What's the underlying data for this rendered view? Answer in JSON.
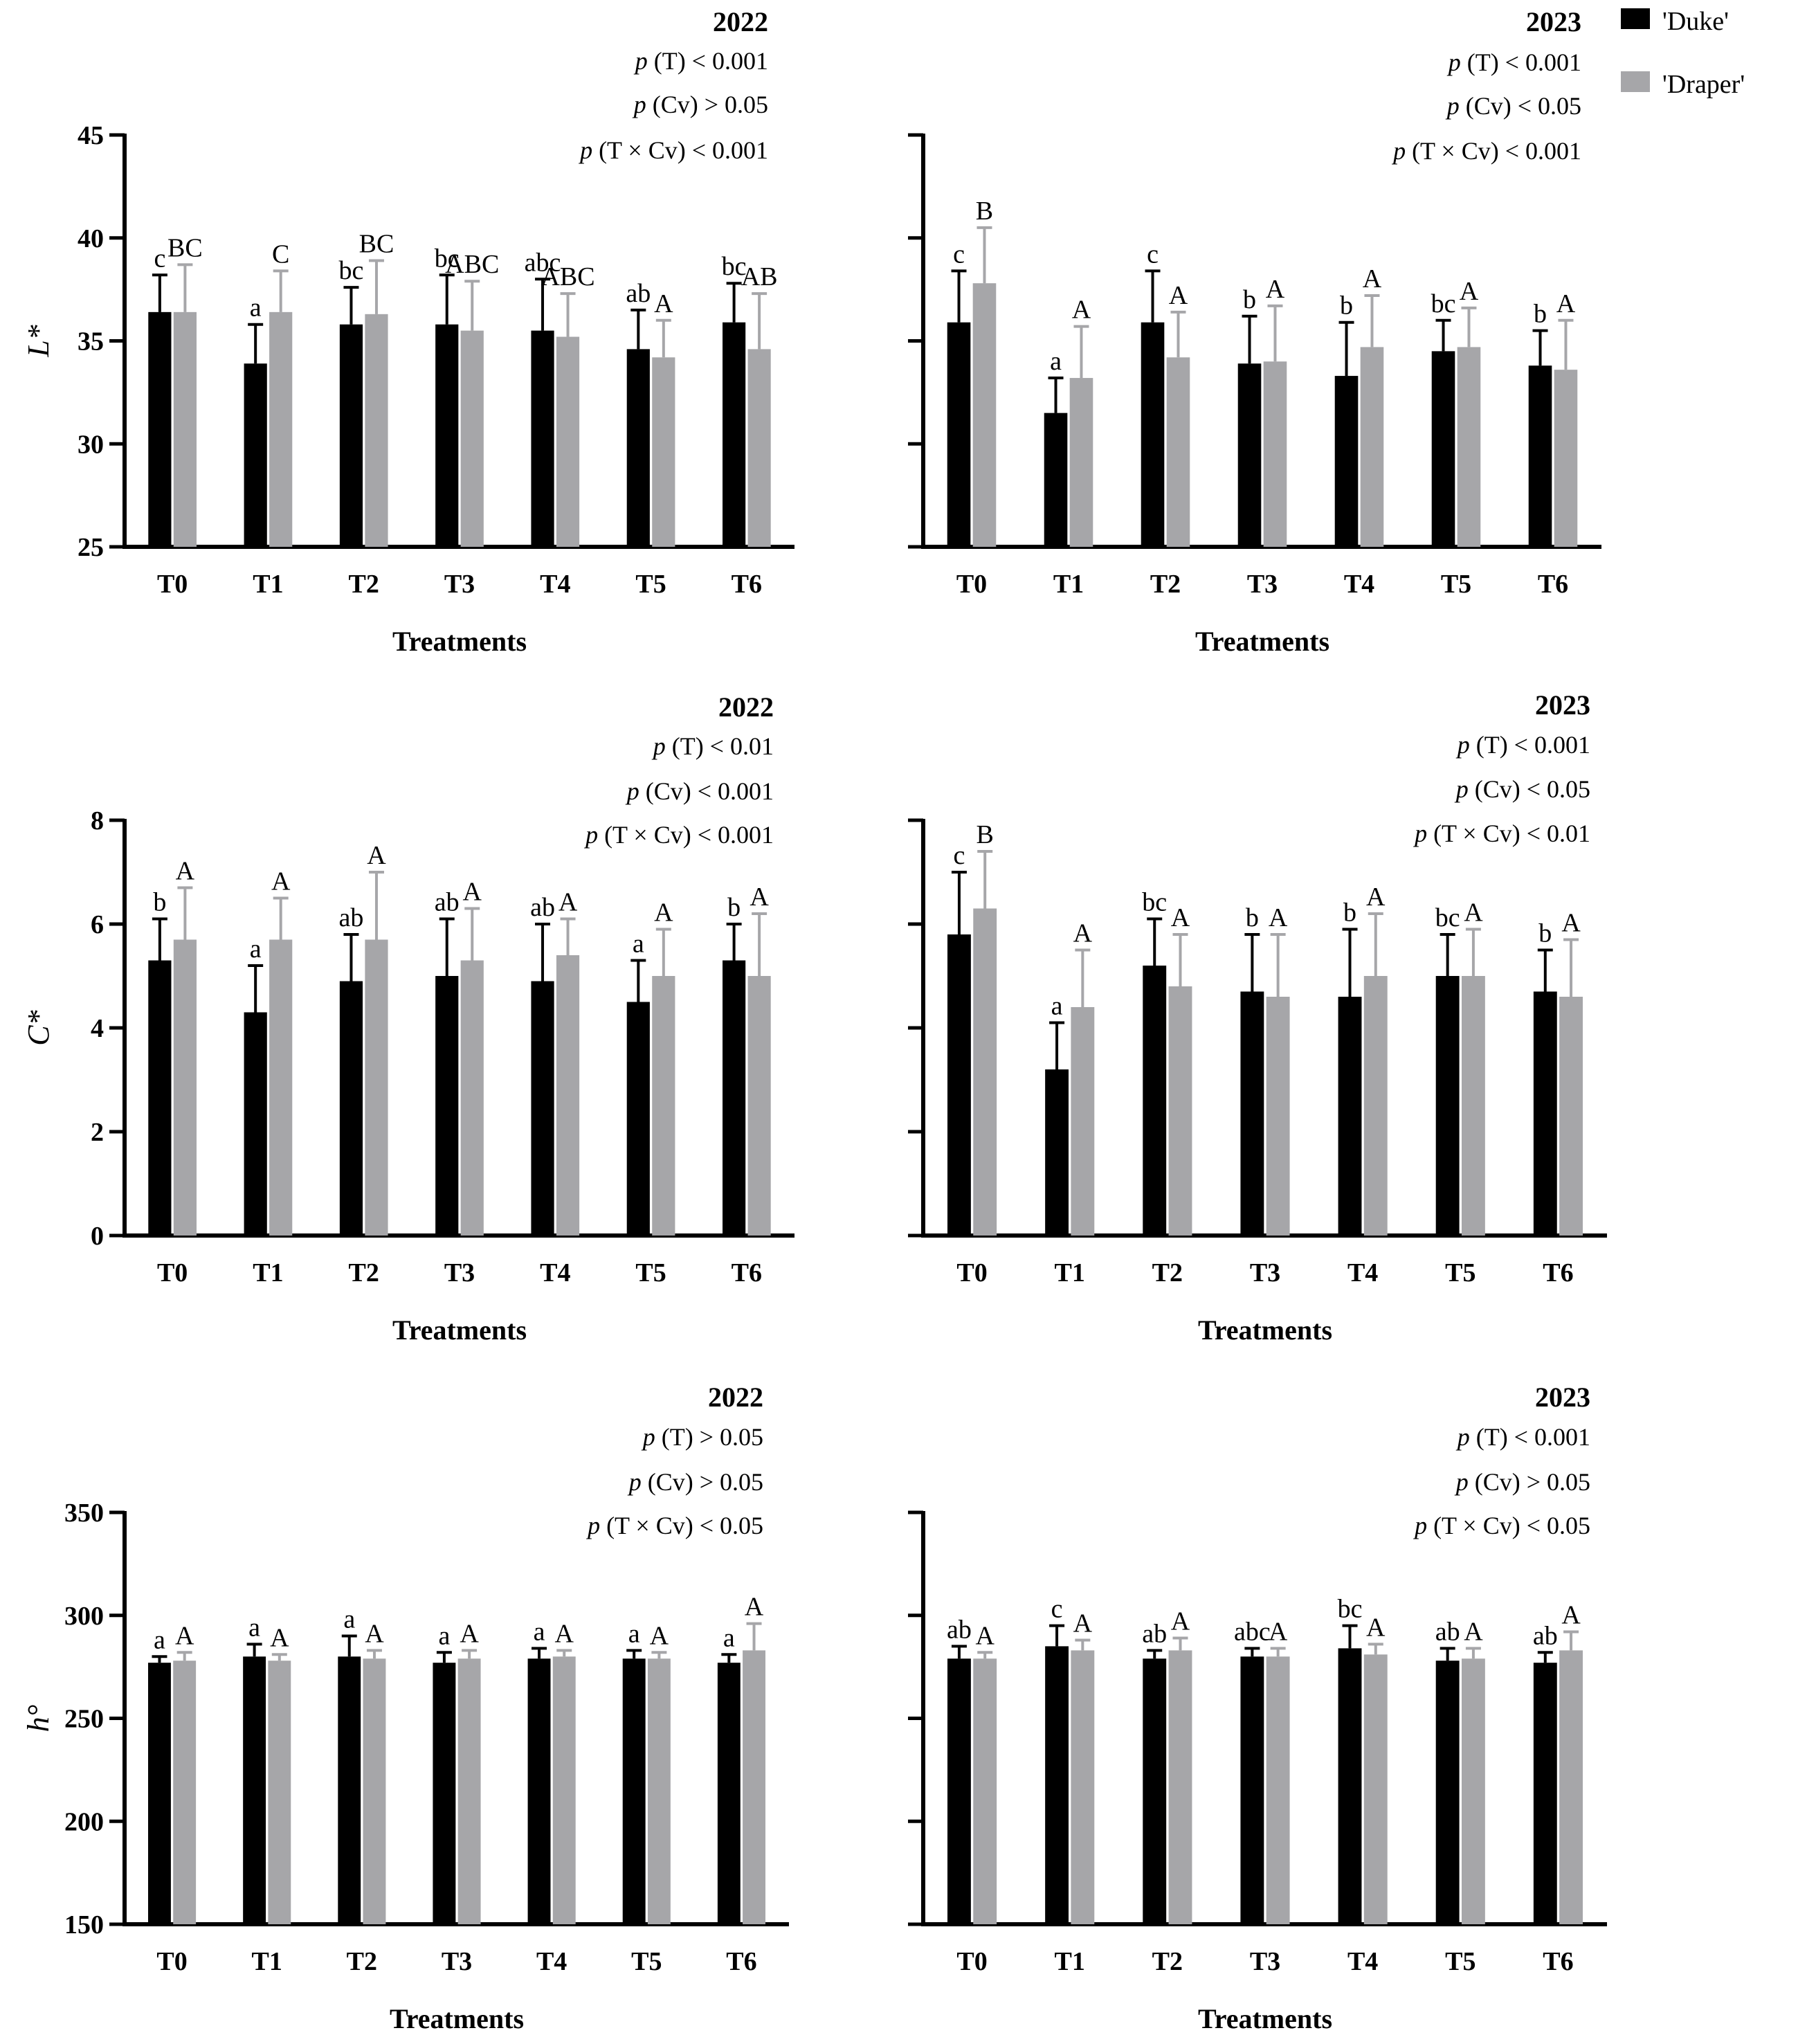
{
  "figure": {
    "legend": [
      {
        "label": "'Duke'",
        "color": "#000000"
      },
      {
        "label": "'Draper'",
        "color": "#a6a6a9"
      }
    ]
  },
  "chart_data": [
    {
      "id": "L-2022",
      "type": "bar",
      "title": "2022",
      "stats": [
        {
          "p": "p",
          "rest": " (T) < 0.001"
        },
        {
          "p": "p",
          "rest": " (Cv) > 0.05"
        },
        {
          "p": "p",
          "rest": " (T × Cv) < 0.001"
        }
      ],
      "categories": [
        "T0",
        "T1",
        "T2",
        "T3",
        "T4",
        "T5",
        "T6"
      ],
      "xlabel": "Treatments",
      "ylabel": "L*",
      "ylim": [
        25,
        45
      ],
      "yticks": [
        25,
        30,
        35,
        40,
        45
      ],
      "show_tick_labels": true,
      "series": [
        {
          "name": "'Duke'",
          "color": "#000000",
          "values": [
            36.4,
            33.9,
            35.8,
            35.8,
            35.5,
            34.6,
            35.9
          ],
          "errors": [
            1.8,
            1.9,
            1.8,
            2.4,
            2.5,
            1.9,
            1.9
          ],
          "letters": [
            "c",
            "a",
            "bc",
            "bc",
            "abc",
            "ab",
            "bc"
          ]
        },
        {
          "name": "'Draper'",
          "color": "#a6a6a9",
          "values": [
            36.4,
            36.4,
            36.3,
            35.5,
            35.2,
            34.2,
            34.6
          ],
          "errors": [
            2.3,
            2.0,
            2.6,
            2.4,
            2.1,
            1.8,
            2.7
          ],
          "letters": [
            "BC",
            "C",
            "BC",
            "ABC",
            "ABC",
            "A",
            "AB"
          ]
        }
      ]
    },
    {
      "id": "L-2023",
      "type": "bar",
      "title": "2023",
      "stats": [
        {
          "p": "p",
          "rest": " (T) < 0.001"
        },
        {
          "p": "p",
          "rest": " (Cv) < 0.05"
        },
        {
          "p": "p",
          "rest": " (T × Cv) < 0.001"
        }
      ],
      "categories": [
        "T0",
        "T1",
        "T2",
        "T3",
        "T4",
        "T5",
        "T6"
      ],
      "xlabel": "Treatments",
      "ylabel": "",
      "ylim": [
        25,
        45
      ],
      "yticks": [
        25,
        30,
        35,
        40,
        45
      ],
      "show_tick_labels": false,
      "series": [
        {
          "name": "'Duke'",
          "color": "#000000",
          "values": [
            35.9,
            31.5,
            35.9,
            33.9,
            33.3,
            34.5,
            33.8
          ],
          "errors": [
            2.5,
            1.7,
            2.5,
            2.3,
            2.6,
            1.5,
            1.7
          ],
          "letters": [
            "c",
            "a",
            "c",
            "b",
            "b",
            "bc",
            "b"
          ]
        },
        {
          "name": "'Draper'",
          "color": "#a6a6a9",
          "values": [
            37.8,
            33.2,
            34.2,
            34.0,
            34.7,
            34.7,
            33.6
          ],
          "errors": [
            2.7,
            2.5,
            2.2,
            2.7,
            2.5,
            1.9,
            2.4
          ],
          "letters": [
            "B",
            "A",
            "A",
            "A",
            "A",
            "A",
            "A"
          ]
        }
      ]
    },
    {
      "id": "C-2022",
      "type": "bar",
      "title": "2022",
      "stats": [
        {
          "p": "p",
          "rest": " (T) < 0.01"
        },
        {
          "p": "p",
          "rest": " (Cv) < 0.001"
        },
        {
          "p": "p",
          "rest": " (T × Cv) < 0.001"
        }
      ],
      "categories": [
        "T0",
        "T1",
        "T2",
        "T3",
        "T4",
        "T5",
        "T6"
      ],
      "xlabel": "Treatments",
      "ylabel": "C*",
      "ylim": [
        0,
        8
      ],
      "yticks": [
        0,
        2,
        4,
        6,
        8
      ],
      "show_tick_labels": true,
      "series": [
        {
          "name": "'Duke'",
          "color": "#000000",
          "values": [
            5.3,
            4.3,
            4.9,
            5.0,
            4.9,
            4.5,
            5.3
          ],
          "errors": [
            0.8,
            0.9,
            0.9,
            1.1,
            1.1,
            0.8,
            0.7
          ],
          "letters": [
            "b",
            "a",
            "ab",
            "ab",
            "ab",
            "a",
            "b"
          ]
        },
        {
          "name": "'Draper'",
          "color": "#a6a6a9",
          "values": [
            5.7,
            5.7,
            5.7,
            5.3,
            5.4,
            5.0,
            5.0
          ],
          "errors": [
            1.0,
            0.8,
            1.3,
            1.0,
            0.7,
            0.9,
            1.2
          ],
          "letters": [
            "A",
            "A",
            "A",
            "A",
            "A",
            "A",
            "A"
          ]
        }
      ]
    },
    {
      "id": "C-2023",
      "type": "bar",
      "title": "2023",
      "stats": [
        {
          "p": "p",
          "rest": " (T) < 0.001"
        },
        {
          "p": "p",
          "rest": " (Cv) < 0.05"
        },
        {
          "p": "p",
          "rest": " (T × Cv) < 0.01"
        }
      ],
      "categories": [
        "T0",
        "T1",
        "T2",
        "T3",
        "T4",
        "T5",
        "T6"
      ],
      "xlabel": "Treatments",
      "ylabel": "",
      "ylim": [
        0,
        8
      ],
      "yticks": [
        0,
        2,
        4,
        6,
        8
      ],
      "show_tick_labels": false,
      "series": [
        {
          "name": "'Duke'",
          "color": "#000000",
          "values": [
            5.8,
            3.2,
            5.2,
            4.7,
            4.6,
            5.0,
            4.7
          ],
          "errors": [
            1.2,
            0.9,
            0.9,
            1.1,
            1.3,
            0.8,
            0.8
          ],
          "letters": [
            "c",
            "a",
            "bc",
            "b",
            "b",
            "bc",
            "b"
          ]
        },
        {
          "name": "'Draper'",
          "color": "#a6a6a9",
          "values": [
            6.3,
            4.4,
            4.8,
            4.6,
            5.0,
            5.0,
            4.6
          ],
          "errors": [
            1.1,
            1.1,
            1.0,
            1.2,
            1.2,
            0.9,
            1.1
          ],
          "letters": [
            "B",
            "A",
            "A",
            "A",
            "A",
            "A",
            "A"
          ]
        }
      ]
    },
    {
      "id": "h-2022",
      "type": "bar",
      "title": "2022",
      "stats": [
        {
          "p": "p",
          "rest": " (T) > 0.05"
        },
        {
          "p": "p",
          "rest": " (Cv) > 0.05"
        },
        {
          "p": "p",
          "rest": " (T × Cv) < 0.05"
        }
      ],
      "categories": [
        "T0",
        "T1",
        "T2",
        "T3",
        "T4",
        "T5",
        "T6"
      ],
      "xlabel": "Treatments",
      "ylabel": "h°",
      "ylim": [
        150,
        350
      ],
      "yticks": [
        150,
        200,
        250,
        300,
        350
      ],
      "show_tick_labels": true,
      "series": [
        {
          "name": "'Duke'",
          "color": "#000000",
          "values": [
            277,
            280,
            280,
            277,
            279,
            279,
            277
          ],
          "errors": [
            3,
            6,
            10,
            5,
            5,
            4,
            4
          ],
          "letters": [
            "a",
            "a",
            "a",
            "a",
            "a",
            "a",
            "a"
          ]
        },
        {
          "name": "'Draper'",
          "color": "#a6a6a9",
          "values": [
            278,
            278,
            279,
            279,
            280,
            279,
            283
          ],
          "errors": [
            4,
            3,
            4,
            4,
            3,
            3,
            13
          ],
          "letters": [
            "A",
            "A",
            "A",
            "A",
            "A",
            "A",
            "A"
          ]
        }
      ]
    },
    {
      "id": "h-2023",
      "type": "bar",
      "title": "2023",
      "stats": [
        {
          "p": "p",
          "rest": " (T) < 0.001"
        },
        {
          "p": "p",
          "rest": " (Cv) > 0.05"
        },
        {
          "p": "p",
          "rest": " (T × Cv) < 0.05"
        }
      ],
      "categories": [
        "T0",
        "T1",
        "T2",
        "T3",
        "T4",
        "T5",
        "T6"
      ],
      "xlabel": "Treatments",
      "ylabel": "",
      "ylim": [
        150,
        350
      ],
      "yticks": [
        150,
        200,
        250,
        300,
        350
      ],
      "show_tick_labels": false,
      "series": [
        {
          "name": "'Duke'",
          "color": "#000000",
          "values": [
            279,
            285,
            279,
            280,
            284,
            278,
            277
          ],
          "errors": [
            6,
            10,
            4,
            4,
            11,
            6,
            5
          ],
          "letters": [
            "ab",
            "c",
            "ab",
            "abc",
            "bc",
            "ab",
            "ab"
          ]
        },
        {
          "name": "'Draper'",
          "color": "#a6a6a9",
          "values": [
            279,
            283,
            283,
            280,
            281,
            279,
            283
          ],
          "errors": [
            3,
            5,
            6,
            4,
            5,
            5,
            9
          ],
          "letters": [
            "A",
            "A",
            "A",
            "A",
            "A",
            "A",
            "A"
          ]
        }
      ]
    }
  ]
}
